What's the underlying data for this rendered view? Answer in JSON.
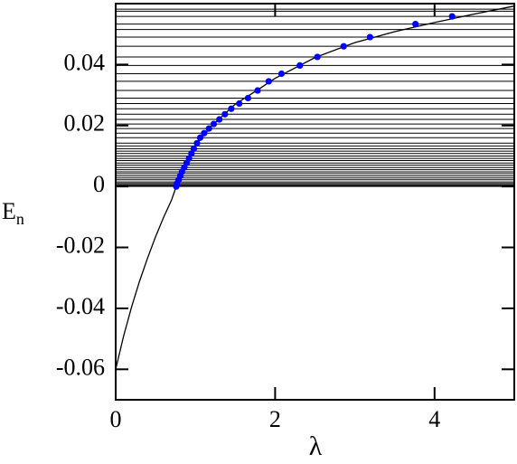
{
  "chart_data": {
    "type": "line",
    "xlabel": "λ",
    "ylabel": "E",
    "ylabel_sub": "n",
    "xlim": [
      0,
      5
    ],
    "ylim": [
      -0.07,
      0.06
    ],
    "xticks": [
      0,
      2,
      4
    ],
    "yticks": [
      -0.06,
      -0.04,
      -0.02,
      0,
      0.02,
      0.04
    ],
    "levels": [
      0,
      0.0003,
      0.0006,
      0.001,
      0.0015,
      0.0022,
      0.0028,
      0.0035,
      0.0042,
      0.0048,
      0.0055,
      0.0062,
      0.007,
      0.0077,
      0.0085,
      0.0092,
      0.01,
      0.0108,
      0.0116,
      0.0124,
      0.0133,
      0.0142,
      0.016,
      0.0175,
      0.019,
      0.0205,
      0.022,
      0.0237,
      0.0255,
      0.0272,
      0.029,
      0.0315,
      0.0345,
      0.037,
      0.0397,
      0.0425,
      0.046,
      0.049,
      0.0515,
      0.0533,
      0.0558,
      0.0575,
      0.0582
    ],
    "levels_color": "#000000",
    "curve": {
      "color": "#000000",
      "x": [
        0,
        0.1,
        0.2,
        0.3,
        0.4,
        0.5,
        0.6,
        0.7,
        0.76,
        0.85,
        1,
        1.2,
        1.5,
        1.8,
        2,
        2.5,
        3,
        3.5,
        4,
        4.5,
        5
      ],
      "y": [
        -0.06,
        -0.049,
        -0.0395,
        -0.031,
        -0.0235,
        -0.0165,
        -0.0102,
        -0.0045,
        0,
        0.0058,
        0.0135,
        0.0198,
        0.027,
        0.032,
        0.0355,
        0.0423,
        0.0472,
        0.0508,
        0.0538,
        0.0566,
        0.0592
      ]
    },
    "points": {
      "color": "#0000ff",
      "x": [
        0.76,
        0.77,
        0.79,
        0.81,
        0.83,
        0.86,
        0.89,
        0.92,
        0.95,
        0.98,
        1.02,
        1.06,
        1.11,
        1.17,
        1.23,
        1.3,
        1.37,
        1.45,
        1.55,
        1.66,
        1.78,
        1.92,
        2.08,
        2.31,
        2.53,
        2.86,
        3.19,
        3.76,
        4.22
      ],
      "y": [
        0,
        0.001,
        0.0022,
        0.0035,
        0.0048,
        0.0062,
        0.0077,
        0.0092,
        0.0108,
        0.0124,
        0.0142,
        0.016,
        0.0175,
        0.019,
        0.0205,
        0.022,
        0.0237,
        0.0255,
        0.0272,
        0.029,
        0.0315,
        0.0345,
        0.037,
        0.0397,
        0.0425,
        0.046,
        0.049,
        0.0533,
        0.0558
      ]
    }
  }
}
